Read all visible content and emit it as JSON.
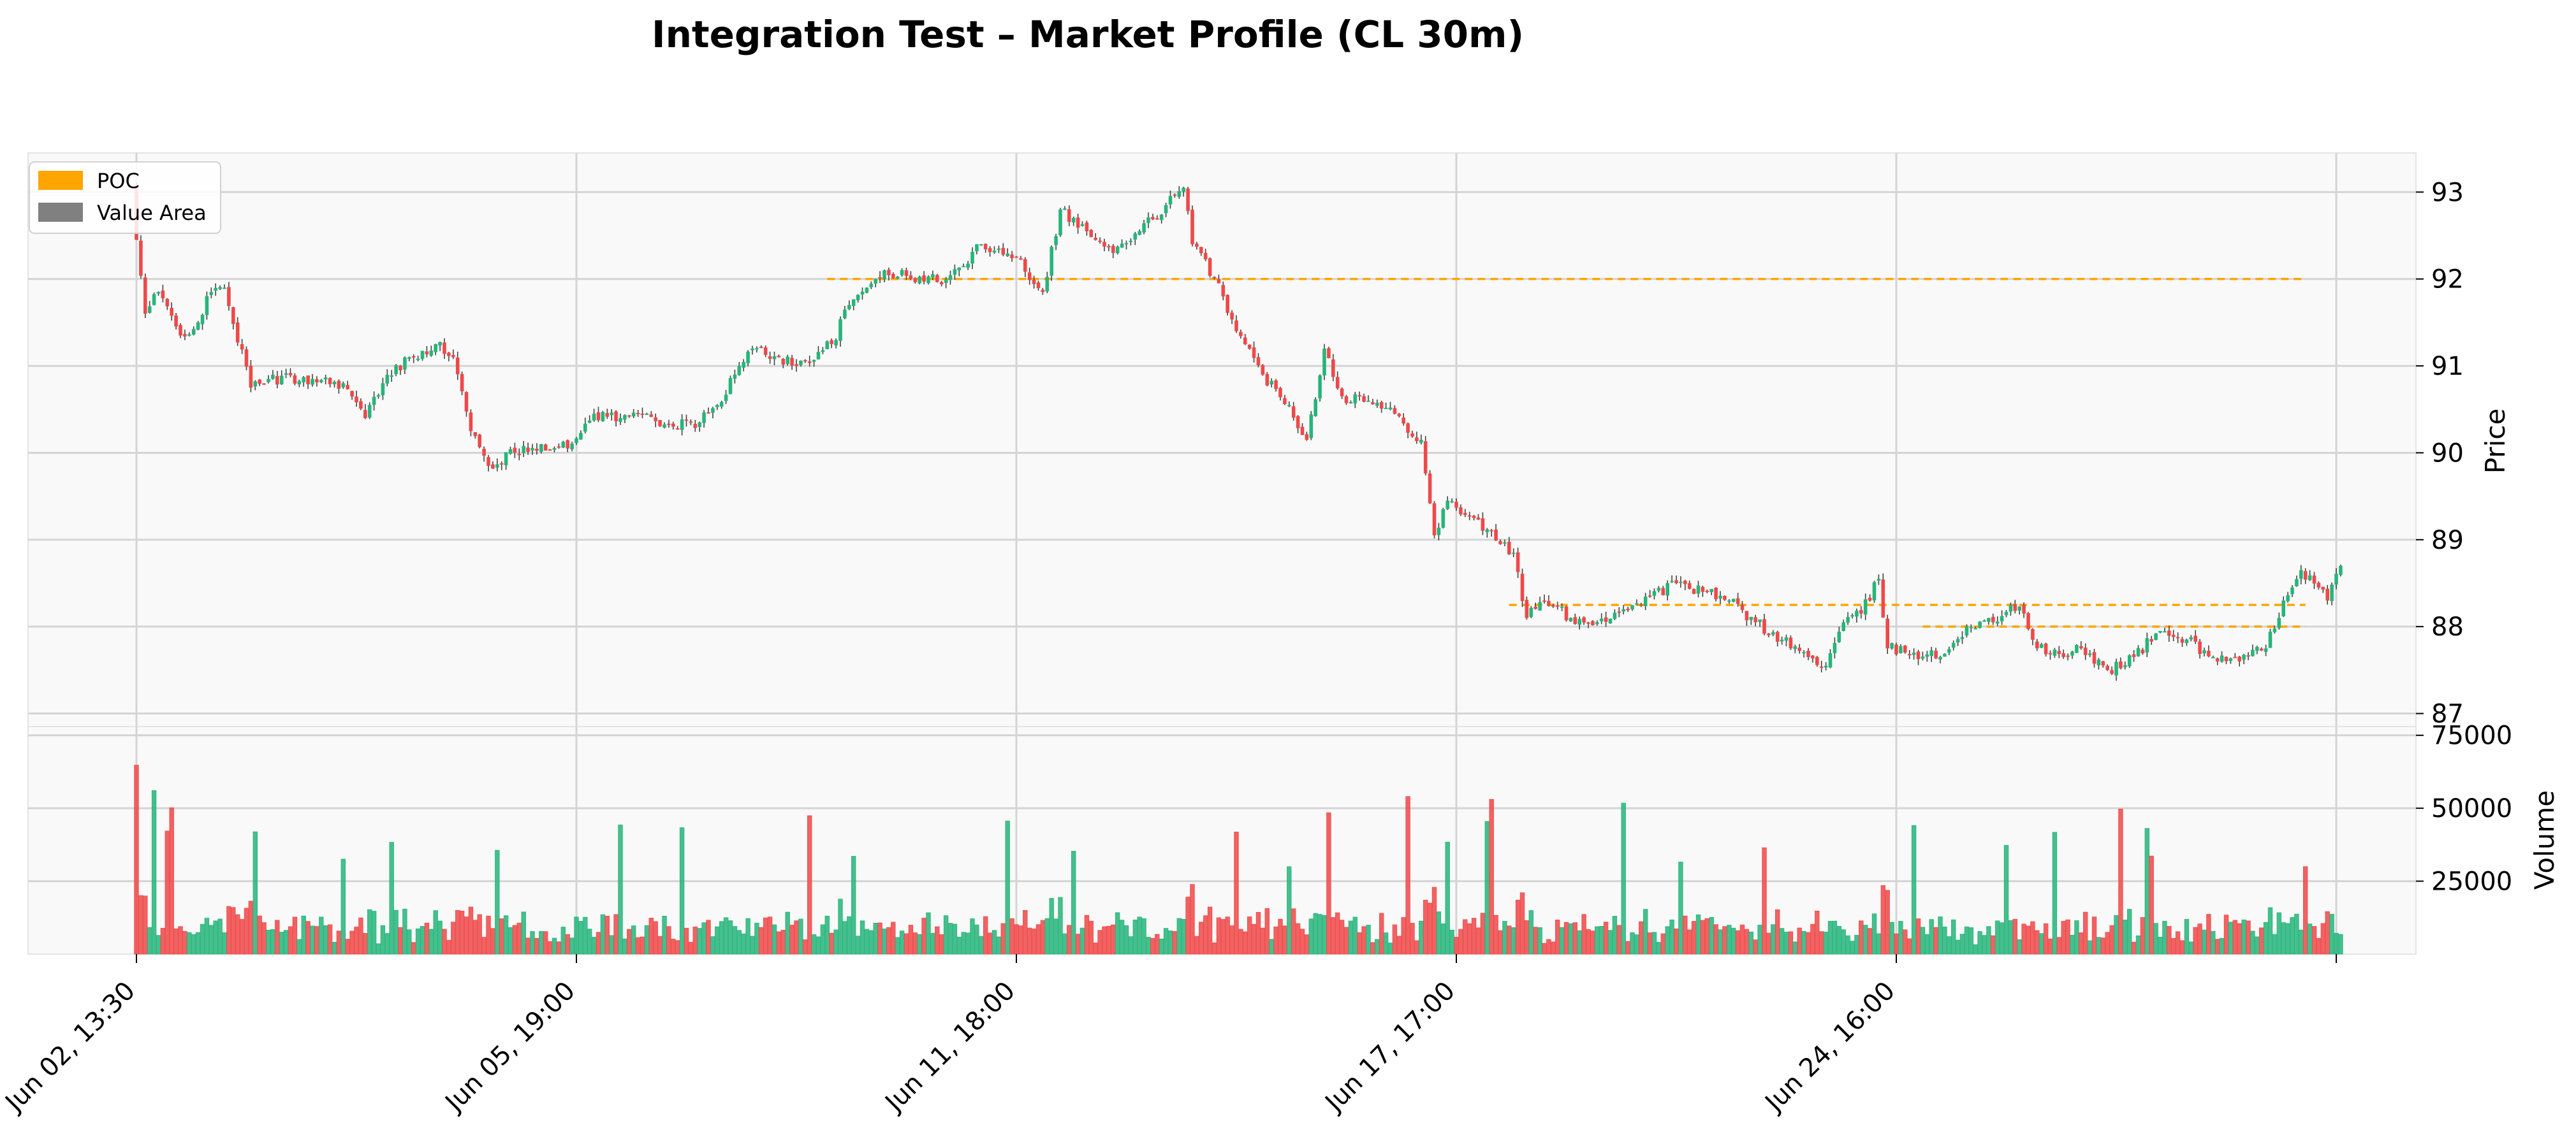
{
  "chart_data": {
    "type": "candlestick",
    "title": "Integration Test – Market Profile (CL 30m)",
    "colors": {
      "up": "#26b57a",
      "down": "#f04848",
      "poc": "#ffa500",
      "value_area": "#808080",
      "panel_bg": "#f9f9f9",
      "grid": "#d4d4d4"
    },
    "grid": true,
    "legend": {
      "position": "top-left",
      "entries": [
        {
          "label": "POC",
          "color": "#ffa500"
        },
        {
          "label": "Value Area",
          "color": "#808080"
        }
      ]
    },
    "x_ticks": [
      {
        "index": 0,
        "label": "Jun 02, 13:30"
      },
      {
        "index": 100,
        "label": "Jun 05, 19:00"
      },
      {
        "index": 200,
        "label": "Jun 11, 18:00"
      },
      {
        "index": 300,
        "label": "Jun 17, 17:00"
      },
      {
        "index": 400,
        "label": "Jun 24, 16:00"
      },
      {
        "index": 500,
        "label": ""
      }
    ],
    "price_panel": {
      "ylabel": "Price",
      "ylim": [
        86.85,
        93.45
      ],
      "ticks": [
        87,
        88,
        89,
        90,
        91,
        92,
        93
      ]
    },
    "volume_panel": {
      "ylabel": "Volume",
      "ylim": [
        0,
        78000
      ],
      "ticks": [
        25000,
        50000,
        75000
      ]
    },
    "poc_lines": [
      {
        "start": 157,
        "end": 493,
        "price": 92.0
      },
      {
        "start": 312,
        "end": 493,
        "price": 88.25
      },
      {
        "start": 406,
        "end": 493,
        "price": 88.0
      }
    ],
    "anchors": [
      [
        0,
        92.45
      ],
      [
        2,
        91.6
      ],
      [
        5,
        91.85
      ],
      [
        10,
        91.35
      ],
      [
        14,
        91.5
      ],
      [
        17,
        91.85
      ],
      [
        20,
        91.9
      ],
      [
        26,
        90.75
      ],
      [
        30,
        90.85
      ],
      [
        40,
        90.85
      ],
      [
        47,
        90.8
      ],
      [
        52,
        90.4
      ],
      [
        56,
        90.8
      ],
      [
        62,
        91.1
      ],
      [
        68,
        91.25
      ],
      [
        72,
        91.1
      ],
      [
        76,
        90.25
      ],
      [
        80,
        89.85
      ],
      [
        86,
        90.0
      ],
      [
        92,
        90.1
      ],
      [
        98,
        90.05
      ],
      [
        104,
        90.45
      ],
      [
        110,
        90.4
      ],
      [
        116,
        90.45
      ],
      [
        122,
        90.3
      ],
      [
        128,
        90.35
      ],
      [
        132,
        90.55
      ],
      [
        136,
        90.9
      ],
      [
        140,
        91.2
      ],
      [
        146,
        91.1
      ],
      [
        150,
        91.0
      ],
      [
        158,
        91.25
      ],
      [
        162,
        91.7
      ],
      [
        166,
        91.9
      ],
      [
        170,
        92.1
      ],
      [
        176,
        92.0
      ],
      [
        184,
        92.0
      ],
      [
        188,
        92.15
      ],
      [
        192,
        92.4
      ],
      [
        196,
        92.35
      ],
      [
        200,
        92.25
      ],
      [
        206,
        91.85
      ],
      [
        210,
        92.8
      ],
      [
        216,
        92.55
      ],
      [
        222,
        92.3
      ],
      [
        228,
        92.55
      ],
      [
        234,
        92.85
      ],
      [
        238,
        93.05
      ],
      [
        240,
        92.4
      ],
      [
        246,
        91.95
      ],
      [
        250,
        91.4
      ],
      [
        256,
        90.9
      ],
      [
        262,
        90.55
      ],
      [
        266,
        90.15
      ],
      [
        270,
        91.2
      ],
      [
        274,
        90.65
      ],
      [
        280,
        90.6
      ],
      [
        286,
        90.45
      ],
      [
        292,
        90.15
      ],
      [
        295,
        89.05
      ],
      [
        298,
        89.45
      ],
      [
        304,
        89.25
      ],
      [
        310,
        88.95
      ],
      [
        313,
        88.85
      ],
      [
        316,
        88.1
      ],
      [
        320,
        88.3
      ],
      [
        326,
        88.1
      ],
      [
        332,
        88.05
      ],
      [
        338,
        88.2
      ],
      [
        344,
        88.35
      ],
      [
        350,
        88.5
      ],
      [
        356,
        88.4
      ],
      [
        362,
        88.3
      ],
      [
        368,
        88.05
      ],
      [
        374,
        87.85
      ],
      [
        380,
        87.65
      ],
      [
        384,
        87.55
      ],
      [
        388,
        88.05
      ],
      [
        392,
        88.15
      ],
      [
        396,
        88.55
      ],
      [
        398,
        87.75
      ],
      [
        404,
        87.7
      ],
      [
        410,
        87.65
      ],
      [
        416,
        88.0
      ],
      [
        422,
        88.05
      ],
      [
        426,
        88.25
      ],
      [
        429,
        88.15
      ],
      [
        432,
        87.75
      ],
      [
        438,
        87.65
      ],
      [
        442,
        87.75
      ],
      [
        448,
        87.5
      ],
      [
        454,
        87.65
      ],
      [
        460,
        87.95
      ],
      [
        466,
        87.85
      ],
      [
        472,
        87.65
      ],
      [
        478,
        87.6
      ],
      [
        484,
        87.75
      ],
      [
        488,
        88.3
      ],
      [
        492,
        88.65
      ],
      [
        496,
        88.45
      ],
      [
        498,
        88.3
      ],
      [
        501,
        88.7
      ]
    ]
  }
}
